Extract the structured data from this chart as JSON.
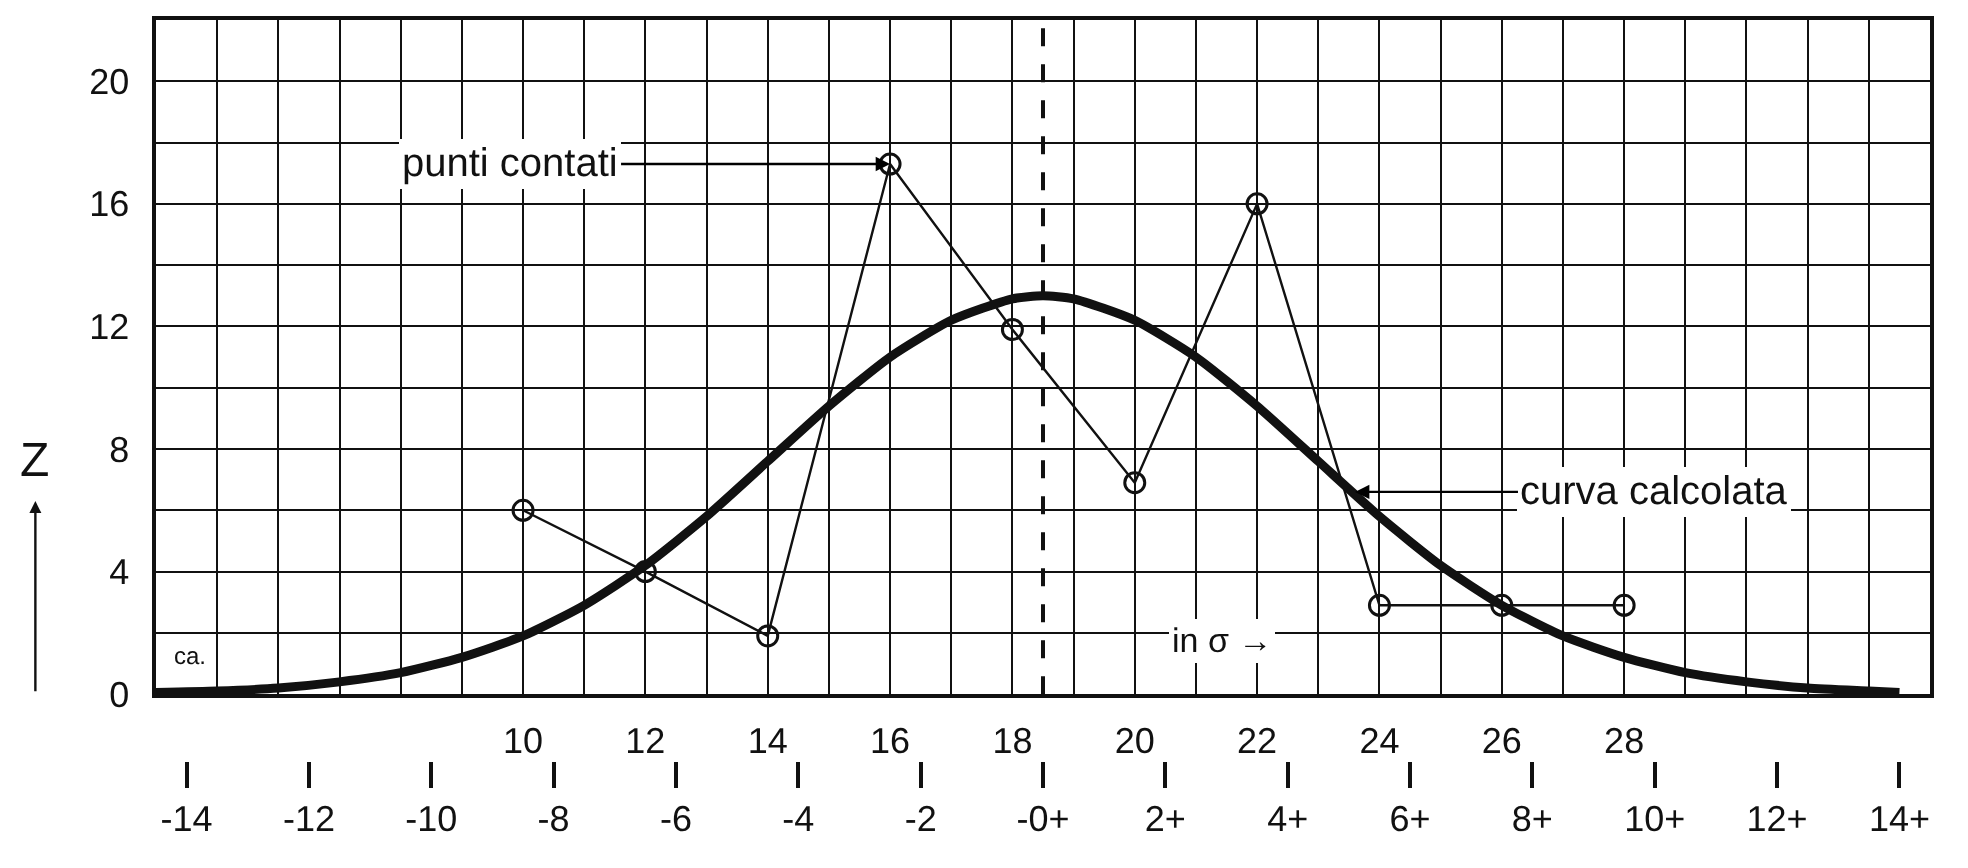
{
  "chart_data": {
    "type": "line",
    "ylabel": "Z",
    "xlim": [
      4,
      33
    ],
    "xticks": [
      10,
      12,
      14,
      16,
      18,
      20,
      22,
      24,
      26,
      28
    ],
    "x2lim": [
      -14.5,
      14.5
    ],
    "x2ticks": [
      {
        "value": -14,
        "label": "-14"
      },
      {
        "value": -12,
        "label": "-12"
      },
      {
        "value": -10,
        "label": "-10"
      },
      {
        "value": -8,
        "label": "-8"
      },
      {
        "value": -6,
        "label": "-6"
      },
      {
        "value": -4,
        "label": "-4"
      },
      {
        "value": -2,
        "label": "-2"
      },
      {
        "value": 0,
        "label": "-0+"
      },
      {
        "value": 2,
        "label": "2+"
      },
      {
        "value": 4,
        "label": "4+"
      },
      {
        "value": 6,
        "label": "6+"
      },
      {
        "value": 8,
        "label": "8+"
      },
      {
        "value": 10,
        "label": "10+"
      },
      {
        "value": 12,
        "label": "12+"
      },
      {
        "value": 14,
        "label": "14+"
      }
    ],
    "ylim": [
      0,
      22
    ],
    "yticks": [
      0,
      4,
      8,
      12,
      16,
      20
    ],
    "grid": true,
    "series": [
      {
        "color": "#111111",
        "marker": "circle",
        "x": [
          10,
          12,
          14,
          16,
          18,
          20,
          22,
          24,
          26,
          28
        ],
        "values": [
          6,
          4,
          1.9,
          17.3,
          11.9,
          6.9,
          16,
          2.9,
          2.9,
          2.9
        ]
      },
      {
        "color": "#111111",
        "marker": "none",
        "x": [
          4,
          5,
          6,
          7,
          8,
          9,
          10,
          11,
          12,
          13,
          14,
          15,
          16,
          17,
          18,
          18.5,
          19,
          20,
          21,
          22,
          23,
          24,
          25,
          26,
          27,
          28,
          29,
          30,
          31,
          32,
          32.5
        ],
        "values": [
          0.05,
          0.1,
          0.2,
          0.4,
          0.7,
          1.2,
          1.9,
          2.9,
          4.2,
          5.8,
          7.6,
          9.4,
          11,
          12.2,
          12.9,
          13,
          12.9,
          12.2,
          11,
          9.4,
          7.6,
          5.8,
          4.2,
          2.9,
          1.9,
          1.2,
          0.7,
          0.4,
          0.2,
          0.1,
          0.05
        ]
      }
    ],
    "ref_lines": [
      {
        "axis": "x",
        "value": 18.5,
        "color": "#111111",
        "line_style": "dashed"
      }
    ],
    "annotations": [
      {
        "text": "punti contati",
        "x": 16,
        "y": 17.3
      },
      {
        "text": "curva calcolata",
        "x": 23.6,
        "y": 6.6
      },
      "in σ →",
      "ca."
    ]
  }
}
